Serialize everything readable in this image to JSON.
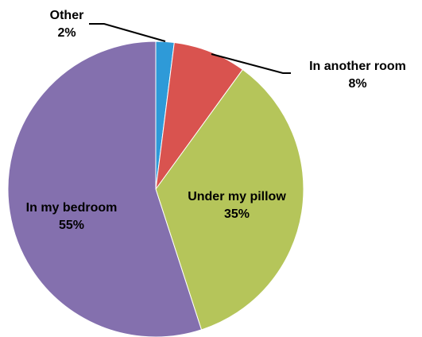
{
  "chart_data": {
    "type": "pie",
    "categories": [
      "Other",
      "In another room",
      "Under my pillow",
      "In my bedroom"
    ],
    "values": [
      2,
      8,
      35,
      55
    ],
    "value_labels": [
      "2%",
      "8%",
      "35%",
      "55%"
    ],
    "colors": [
      "#2e9ad8",
      "#d9534f",
      "#b5c55a",
      "#8470ae"
    ]
  }
}
